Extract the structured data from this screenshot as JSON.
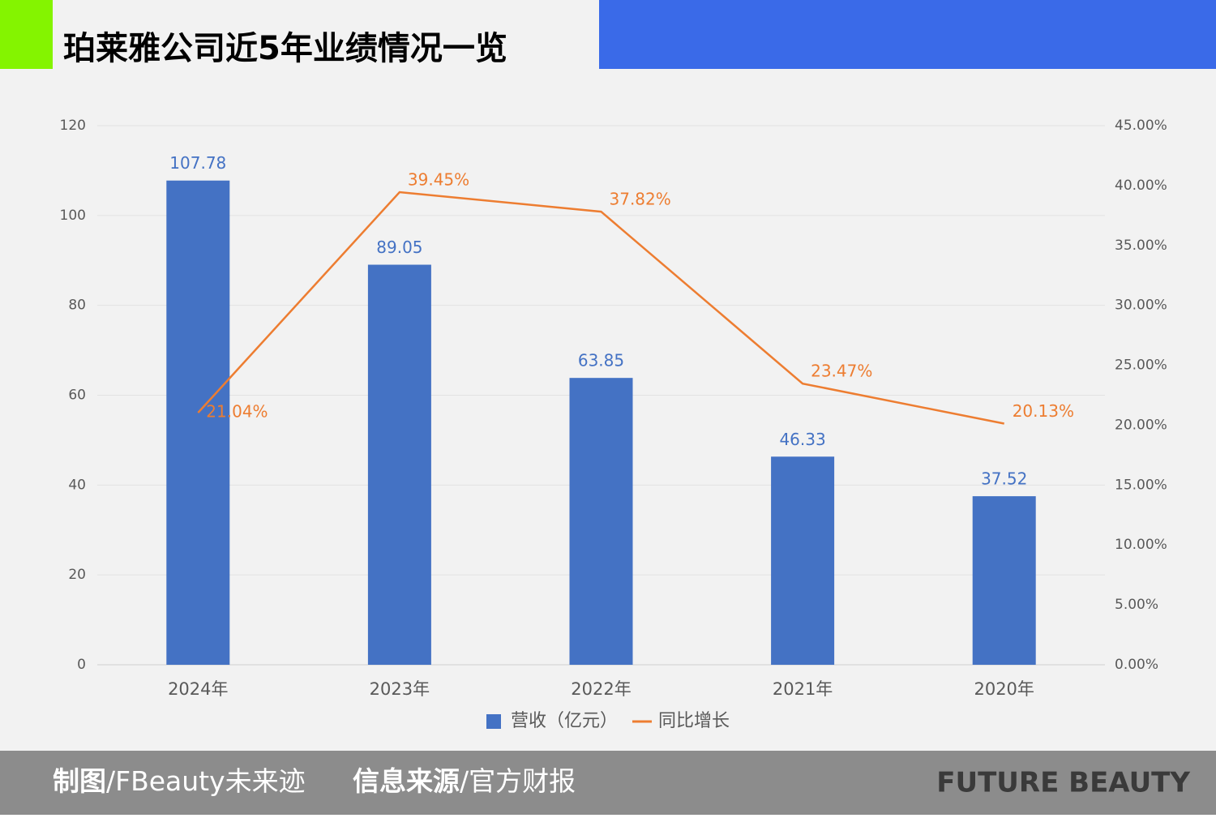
{
  "chart_data": {
    "type": "bar_line",
    "title": "珀莱雅公司近5年业绩情况一览",
    "categories": [
      "2024年",
      "2023年",
      "2022年",
      "2021年",
      "2020年"
    ],
    "series": [
      {
        "name": "营收（亿元）",
        "type": "bar",
        "color": "#4472c4",
        "values": [
          107.78,
          89.05,
          63.85,
          46.33,
          37.52
        ]
      },
      {
        "name": "同比增长",
        "type": "line",
        "axis": "y2",
        "color": "#ed7d31",
        "values": [
          21.04,
          39.45,
          37.82,
          23.47,
          20.13
        ],
        "value_labels": [
          "21.04%",
          "39.45%",
          "37.82%",
          "23.47%",
          "20.13%"
        ]
      }
    ],
    "ylim": [
      0,
      120
    ],
    "yticks": [
      0,
      20,
      40,
      60,
      80,
      100,
      120
    ],
    "y2lim": [
      0,
      45
    ],
    "y2ticks": [
      {
        "value": 0,
        "label": "0.00%"
      },
      {
        "value": 5,
        "label": "5.00%"
      },
      {
        "value": 10,
        "label": "10.00%"
      },
      {
        "value": 15,
        "label": "15.00%"
      },
      {
        "value": 20,
        "label": "20.00%"
      },
      {
        "value": 25,
        "label": "25.00%"
      },
      {
        "value": 30,
        "label": "30.00%"
      },
      {
        "value": 35,
        "label": "35.00%"
      },
      {
        "value": 40,
        "label": "40.00%"
      },
      {
        "value": 45,
        "label": "45.00%"
      }
    ],
    "grid": true,
    "legend": "bottom"
  },
  "footer": {
    "maker_label": "制图",
    "maker": "/FBeauty未来迹",
    "source_label": "信息来源",
    "source": "/官方财报",
    "brand": "FUTURE BEAUTY"
  }
}
